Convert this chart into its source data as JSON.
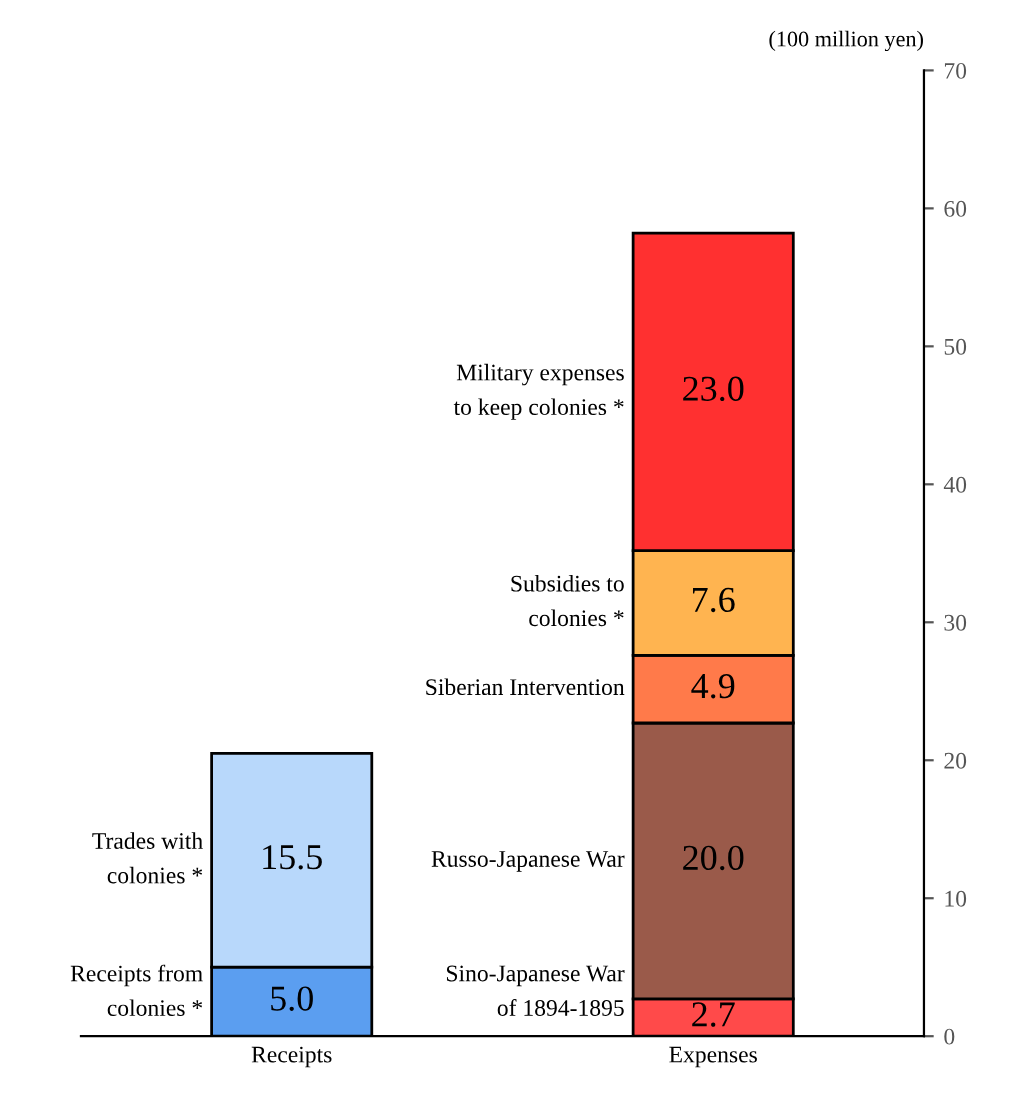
{
  "chart_data": {
    "type": "bar",
    "stacked": true,
    "ylabel": "(100 million yen)",
    "categories": [
      "Receipts",
      "Expenses"
    ],
    "series": [
      {
        "name": "Receipts from\ncolonies *",
        "color": "#5b9ef0",
        "values": [
          5.0,
          null
        ],
        "value_labels": [
          "5.0",
          null
        ]
      },
      {
        "name": "Trades with\ncolonies *",
        "color": "#b8d8fb",
        "values": [
          15.5,
          null
        ],
        "value_labels": [
          "15.5",
          null
        ]
      },
      {
        "name": "Sino-Japanese War\nof 1894-1895",
        "color": "#ff4a4a",
        "values": [
          null,
          2.7
        ],
        "value_labels": [
          null,
          "2.7"
        ]
      },
      {
        "name": "Russo-Japanese War",
        "color": "#9a5a4a",
        "values": [
          null,
          20.0
        ],
        "value_labels": [
          null,
          "20.0"
        ]
      },
      {
        "name": "Siberian Intervention",
        "color": "#ff7a4a",
        "values": [
          null,
          4.9
        ],
        "value_labels": [
          null,
          "4.9"
        ]
      },
      {
        "name": "Subsidies to\ncolonies *",
        "color": "#ffb450",
        "values": [
          null,
          7.6
        ],
        "value_labels": [
          null,
          "7.6"
        ]
      },
      {
        "name": "Military expenses\nto keep colonies *",
        "color": "#ff3030",
        "values": [
          null,
          23.0
        ],
        "value_labels": [
          null,
          "23.0"
        ]
      }
    ],
    "ylim": [
      0,
      70
    ],
    "yticks": [
      0,
      10,
      20,
      30,
      40,
      50,
      60,
      70
    ],
    "grid": false,
    "legend": false
  }
}
